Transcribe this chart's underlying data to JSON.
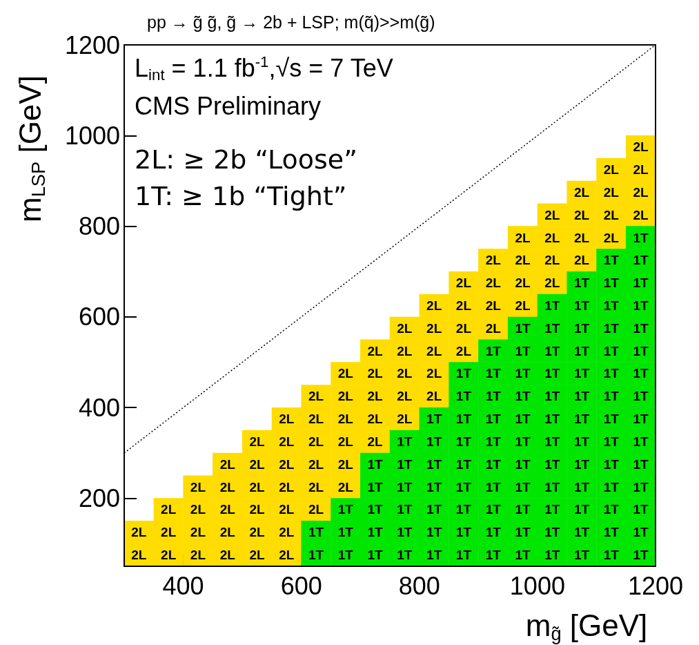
{
  "chart_data": {
    "type": "scatter",
    "title": "pp → g̃ g̃, g̃ → 2b + LSP; m(q̃)>>m(g̃)",
    "xlabel": "m$_{g̃}$ [GeV]",
    "ylabel": "m$_{LSP}$ [GeV]",
    "annotations": [
      "L$_{int}$ = 1.1 fb$^{-1}$,√s = 7 TeV",
      "CMS Preliminary",
      "2L: ≥ 2b “Loose”",
      "1T: ≥ 1b “Tight”"
    ],
    "xlim": [
      300,
      1200
    ],
    "xticks": [
      400,
      600,
      800,
      1000,
      1200
    ],
    "ylim": [
      50,
      1200
    ],
    "yticks": [
      200,
      400,
      600,
      800,
      1000,
      1200
    ],
    "grid": false,
    "marker": "square",
    "series": [
      {
        "name": "2L",
        "color": "#ffdd00",
        "x": [
          325,
          375,
          425,
          475,
          525,
          575,
          325,
          375,
          425,
          475,
          525,
          575,
          375,
          425,
          475,
          525,
          575,
          625,
          425,
          475,
          525,
          575,
          625,
          675,
          475,
          525,
          575,
          625,
          675,
          525,
          575,
          625,
          675,
          725,
          575,
          625,
          675,
          725,
          775,
          625,
          675,
          725,
          775,
          825,
          675,
          725,
          775,
          825,
          725,
          775,
          825,
          875,
          775,
          825,
          875,
          925,
          825,
          875,
          925,
          975,
          875,
          925,
          975,
          1025,
          925,
          975,
          1025,
          1075,
          975,
          1025,
          1075,
          1125,
          1025,
          1075,
          1125,
          1175,
          1075,
          1125,
          1175,
          1125,
          1175,
          1175
        ],
        "values": [
          75,
          75,
          75,
          75,
          75,
          75,
          125,
          125,
          125,
          125,
          125,
          125,
          175,
          175,
          175,
          175,
          175,
          175,
          225,
          225,
          225,
          225,
          225,
          225,
          275,
          275,
          275,
          275,
          275,
          325,
          325,
          325,
          325,
          325,
          375,
          375,
          375,
          375,
          375,
          425,
          425,
          425,
          425,
          425,
          475,
          475,
          475,
          475,
          525,
          525,
          525,
          525,
          575,
          575,
          575,
          575,
          625,
          625,
          625,
          625,
          675,
          675,
          675,
          675,
          725,
          725,
          725,
          725,
          775,
          775,
          775,
          775,
          825,
          825,
          825,
          825,
          875,
          875,
          875,
          925,
          925,
          975
        ]
      },
      {
        "name": "1T",
        "color": "#00e600",
        "x": [
          625,
          675,
          725,
          775,
          825,
          875,
          925,
          975,
          1025,
          1075,
          1125,
          1175,
          625,
          675,
          725,
          775,
          825,
          875,
          925,
          975,
          1025,
          1075,
          1125,
          1175,
          675,
          725,
          775,
          825,
          875,
          925,
          975,
          1025,
          1075,
          1125,
          1175,
          725,
          775,
          825,
          875,
          925,
          975,
          1025,
          1075,
          1125,
          1175,
          725,
          775,
          825,
          875,
          925,
          975,
          1025,
          1075,
          1125,
          1175,
          775,
          825,
          875,
          925,
          975,
          1025,
          1075,
          1125,
          1175,
          825,
          875,
          925,
          975,
          1025,
          1075,
          1125,
          1175,
          875,
          925,
          975,
          1025,
          1075,
          1125,
          1175,
          875,
          925,
          975,
          1025,
          1075,
          1125,
          1175,
          925,
          975,
          1025,
          1075,
          1125,
          1175,
          975,
          1025,
          1075,
          1125,
          1175,
          1025,
          1075,
          1125,
          1175,
          1075,
          1125,
          1175,
          1125,
          1175,
          1175
        ],
        "values": [
          75,
          75,
          75,
          75,
          75,
          75,
          75,
          75,
          75,
          75,
          75,
          75,
          125,
          125,
          125,
          125,
          125,
          125,
          125,
          125,
          125,
          125,
          125,
          125,
          175,
          175,
          175,
          175,
          175,
          175,
          175,
          175,
          175,
          175,
          175,
          225,
          225,
          225,
          225,
          225,
          225,
          225,
          225,
          225,
          225,
          275,
          275,
          275,
          275,
          275,
          275,
          275,
          275,
          275,
          275,
          325,
          325,
          325,
          325,
          325,
          325,
          325,
          325,
          325,
          375,
          375,
          375,
          375,
          375,
          375,
          375,
          375,
          425,
          425,
          425,
          425,
          425,
          425,
          425,
          475,
          475,
          475,
          475,
          475,
          475,
          475,
          525,
          525,
          525,
          525,
          525,
          525,
          575,
          575,
          575,
          575,
          575,
          625,
          625,
          625,
          625,
          675,
          675,
          675,
          725,
          725,
          775
        ]
      },
      {
        "type": "line",
        "x": [
          300,
          1200
        ],
        "values": [
          300,
          1200
        ],
        "color": "#000000",
        "line_style": "dotted",
        "marker": "none"
      }
    ]
  }
}
